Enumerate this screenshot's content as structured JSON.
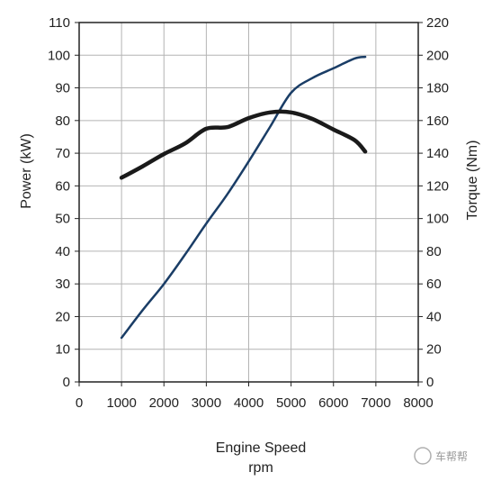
{
  "chart_data": {
    "type": "line",
    "xlabel": "Engine Speed",
    "xlabel_unit": "rpm",
    "ylabel_left": "Power (kW)",
    "ylabel_right": "Torque (Nm)",
    "xlim": [
      0,
      8000
    ],
    "ylim_left": [
      0,
      110
    ],
    "ylim_right": [
      0,
      220
    ],
    "x_ticks": [
      0,
      1000,
      2000,
      3000,
      4000,
      5000,
      6000,
      7000,
      8000
    ],
    "y_ticks_left": [
      0,
      10,
      20,
      30,
      40,
      50,
      60,
      70,
      80,
      90,
      100,
      110
    ],
    "y_ticks_right": [
      0,
      20,
      40,
      60,
      80,
      100,
      120,
      140,
      160,
      180,
      200,
      220
    ],
    "grid": true,
    "series": [
      {
        "axis": "left",
        "color": "#1a3d66",
        "x": [
          1000,
          1500,
          2000,
          2500,
          3000,
          3500,
          4000,
          4500,
          5000,
          5500,
          6000,
          6500,
          6750
        ],
        "y": [
          13.5,
          22,
          30,
          39,
          48.5,
          57.5,
          67.5,
          78,
          88.5,
          93,
          96,
          99,
          99.5
        ]
      },
      {
        "axis": "right",
        "color": "#1a1a1a",
        "x": [
          1000,
          1500,
          2000,
          2500,
          3000,
          3500,
          4000,
          4500,
          5000,
          5500,
          6000,
          6500,
          6750
        ],
        "y": [
          125,
          132,
          139.5,
          146,
          155,
          156,
          161.5,
          165,
          165,
          161,
          154.5,
          148,
          141
        ]
      }
    ]
  },
  "watermark": {
    "text": "车帮帮"
  }
}
